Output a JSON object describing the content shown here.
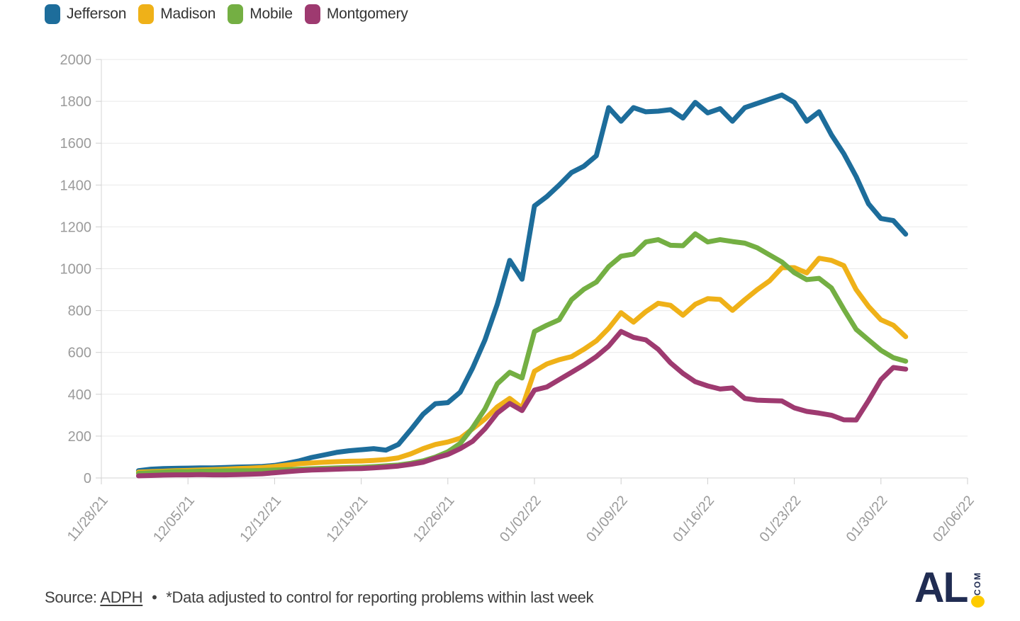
{
  "legend": {
    "items": [
      "Jefferson",
      "Madison",
      "Mobile",
      "Montgomery"
    ]
  },
  "source": {
    "prefix": "Source:",
    "link": "ADPH",
    "bullet": "•",
    "note": "*Data adjusted to control for reporting problems within last week"
  },
  "logo": {
    "text": "AL",
    "tld": "COM",
    "color": "#202c52",
    "dot_color": "#fecb00"
  },
  "chart_data": {
    "type": "line",
    "title": "",
    "xlabel": "",
    "ylabel": "",
    "ylim": [
      0,
      2000
    ],
    "grid": true,
    "legend_position": "top-left",
    "y_ticks": [
      0,
      200,
      400,
      600,
      800,
      1000,
      1200,
      1400,
      1600,
      1800,
      2000
    ],
    "x_tick_labels": [
      "11/28/21",
      "12/05/21",
      "12/12/21",
      "12/19/21",
      "12/26/21",
      "01/02/22",
      "01/09/22",
      "01/16/22",
      "01/23/22",
      "01/30/22",
      "02/06/22"
    ],
    "first_point_date": "12/01/21",
    "last_point_date": "02/01/22",
    "interval": "daily",
    "first_point_day_offset": 3,
    "series": [
      {
        "name": "Jefferson",
        "color": "#1d6d9b",
        "values": [
          35,
          42,
          45,
          46,
          47,
          48,
          48,
          50,
          52,
          53,
          55,
          60,
          70,
          82,
          98,
          110,
          122,
          130,
          135,
          140,
          133,
          160,
          230,
          305,
          355,
          360,
          410,
          525,
          660,
          830,
          1040,
          950,
          1300,
          1345,
          1400,
          1460,
          1490,
          1540,
          1770,
          1705,
          1770,
          1750,
          1753,
          1760,
          1720,
          1795,
          1745,
          1765,
          1705,
          1770,
          1790,
          1810,
          1830,
          1795,
          1705,
          1750,
          1640,
          1550,
          1440,
          1310,
          1240,
          1230,
          1165
        ]
      },
      {
        "name": "Madison",
        "color": "#efb118",
        "values": [
          28,
          30,
          32,
          35,
          36,
          38,
          40,
          42,
          45,
          47,
          50,
          55,
          62,
          68,
          72,
          75,
          78,
          80,
          81,
          84,
          88,
          96,
          115,
          140,
          160,
          172,
          190,
          235,
          282,
          340,
          380,
          335,
          510,
          545,
          565,
          580,
          615,
          655,
          715,
          790,
          745,
          795,
          835,
          825,
          778,
          830,
          857,
          853,
          801,
          852,
          900,
          942,
          1005,
          1005,
          980,
          1050,
          1040,
          1015,
          900,
          820,
          756,
          730,
          675
        ]
      },
      {
        "name": "Mobile",
        "color": "#74af43",
        "values": [
          22,
          25,
          28,
          30,
          30,
          32,
          33,
          34,
          35,
          35,
          36,
          38,
          40,
          42,
          44,
          46,
          48,
          50,
          51,
          54,
          58,
          62,
          70,
          82,
          100,
          125,
          165,
          240,
          330,
          450,
          505,
          478,
          700,
          730,
          756,
          852,
          902,
          936,
          1010,
          1060,
          1070,
          1128,
          1139,
          1112,
          1110,
          1167,
          1128,
          1139,
          1130,
          1122,
          1100,
          1066,
          1032,
          981,
          948,
          954,
          908,
          806,
          710,
          660,
          610,
          575,
          558
        ]
      },
      {
        "name": "Montgomery",
        "color": "#9e3a70",
        "values": [
          10,
          12,
          14,
          15,
          15,
          16,
          15,
          15,
          16,
          18,
          20,
          25,
          30,
          35,
          38,
          40,
          42,
          44,
          45,
          48,
          52,
          57,
          65,
          75,
          95,
          112,
          140,
          175,
          235,
          310,
          356,
          322,
          420,
          435,
          470,
          505,
          540,
          580,
          630,
          700,
          672,
          660,
          615,
          550,
          500,
          460,
          440,
          425,
          430,
          380,
          372,
          370,
          368,
          335,
          318,
          310,
          300,
          278,
          277,
          370,
          470,
          528,
          520
        ]
      }
    ]
  }
}
